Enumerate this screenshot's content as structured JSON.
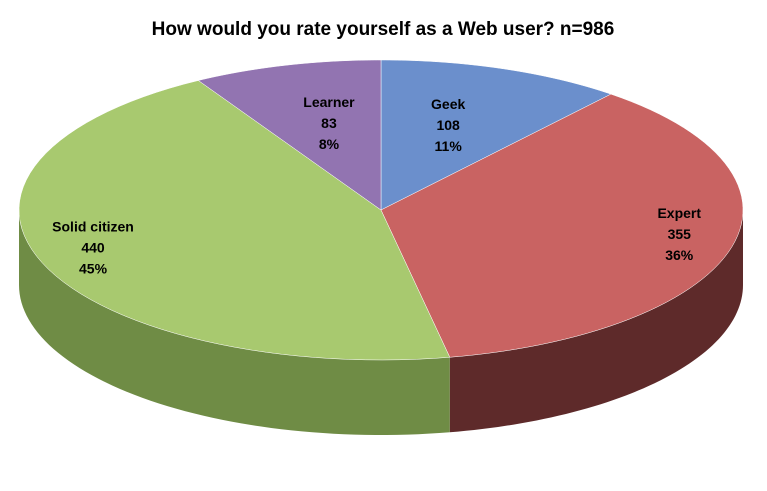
{
  "chart_data": {
    "type": "pie",
    "title": "How would you rate yourself as a Web user? n=986",
    "categories": [
      "Geek",
      "Expert",
      "Solid citizen",
      "Learner"
    ],
    "values": [
      108,
      355,
      440,
      83
    ],
    "percent_labels": [
      "11%",
      "36%",
      "45%",
      "8%"
    ],
    "colors": [
      "#6b8fcc",
      "#c96362",
      "#a8c96f",
      "#9274b1"
    ],
    "side_colors": [
      "#44608f",
      "#5e2a2a",
      "#6f8c45",
      "#5e4578"
    ]
  }
}
